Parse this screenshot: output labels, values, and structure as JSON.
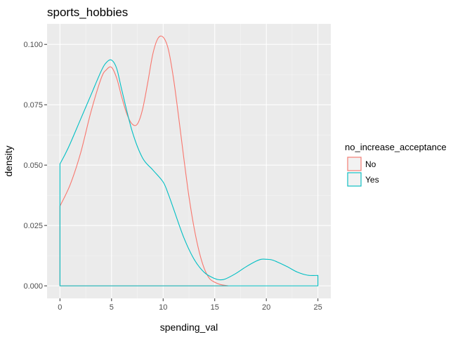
{
  "chart_data": {
    "type": "area",
    "title": "sports_hobbies",
    "xlabel": "spending_val",
    "ylabel": "density",
    "xlim": [
      -1.25,
      26.25
    ],
    "ylim": [
      -0.0052,
      0.1085
    ],
    "x_ticks": [
      0,
      5,
      10,
      15,
      20,
      25
    ],
    "x_tick_labels": [
      "0",
      "5",
      "10",
      "15",
      "20",
      "25"
    ],
    "y_ticks": [
      0,
      0.025,
      0.05,
      0.075,
      0.1
    ],
    "y_tick_labels": [
      "0.000",
      "0.025",
      "0.050",
      "0.075",
      "0.100"
    ],
    "grid": true,
    "legend": {
      "title": "no_increase_acceptance",
      "position": "right"
    },
    "series": [
      {
        "name": "No",
        "color": "#F8766D",
        "x": [
          0,
          1,
          2,
          3,
          4,
          4.5,
          5,
          5.5,
          6,
          6.5,
          7,
          7.5,
          8,
          8.5,
          9,
          9.5,
          10,
          10.5,
          11,
          11.5,
          12,
          12.5,
          13,
          13.5,
          14,
          14.5,
          15,
          15.5,
          16,
          16.3
        ],
        "y": [
          0.033,
          0.042,
          0.055,
          0.072,
          0.086,
          0.0895,
          0.0905,
          0.086,
          0.078,
          0.071,
          0.067,
          0.067,
          0.073,
          0.084,
          0.096,
          0.1025,
          0.103,
          0.098,
          0.086,
          0.07,
          0.053,
          0.037,
          0.024,
          0.014,
          0.007,
          0.003,
          0.0015,
          0.0006,
          0.0002,
          0.0
        ],
        "baseline_end": 16.3
      },
      {
        "name": "Yes",
        "color": "#00BFC4",
        "x": [
          0,
          0.5,
          1,
          2,
          3,
          4,
          4.5,
          5,
          5.5,
          6,
          7,
          8,
          9,
          10,
          10.5,
          11,
          12,
          13,
          14,
          15,
          15.5,
          16,
          17,
          18,
          19,
          19.5,
          20,
          20.5,
          21,
          22,
          23,
          24,
          25
        ],
        "y": [
          0.0505,
          0.0545,
          0.059,
          0.069,
          0.079,
          0.089,
          0.0925,
          0.0935,
          0.09,
          0.081,
          0.064,
          0.053,
          0.048,
          0.043,
          0.038,
          0.032,
          0.02,
          0.011,
          0.0055,
          0.003,
          0.0025,
          0.0028,
          0.005,
          0.0078,
          0.0102,
          0.011,
          0.011,
          0.0108,
          0.01,
          0.008,
          0.0057,
          0.0044,
          0.0043
        ],
        "baseline_end": 25
      }
    ]
  }
}
